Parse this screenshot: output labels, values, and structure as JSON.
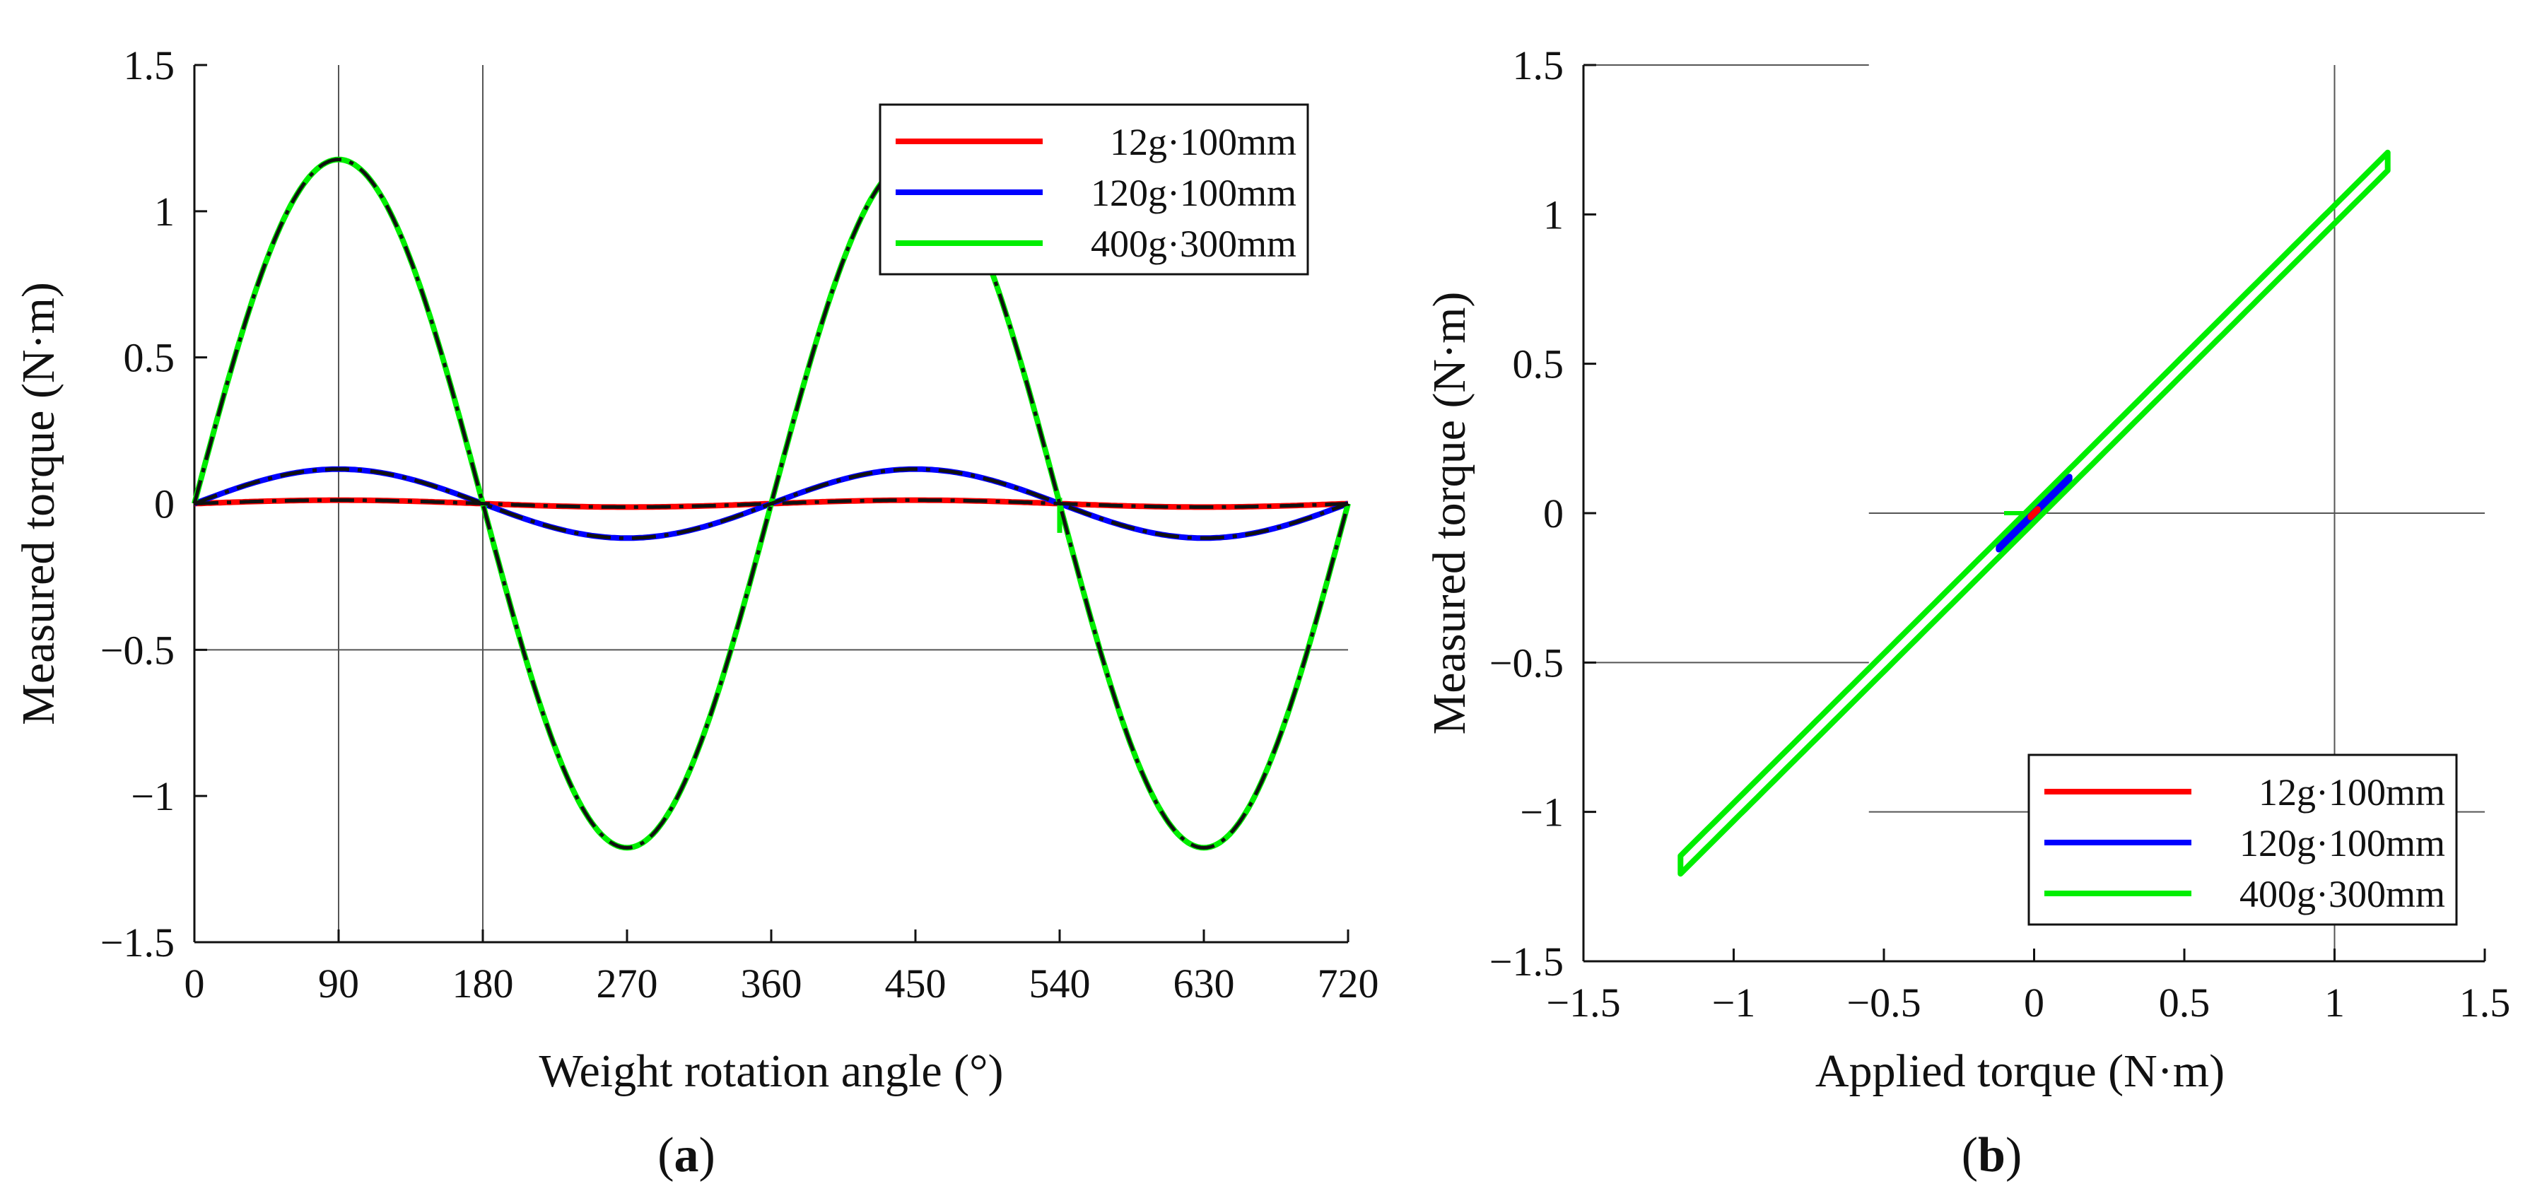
{
  "chart_data": [
    {
      "panel_label": "a",
      "type": "line",
      "xlabel": "Weight rotation angle (°)",
      "ylabel": "Measured torque (N·m)",
      "xlim": [
        0,
        720
      ],
      "ylim": [
        -1.5,
        1.5
      ],
      "xticks": [
        "0",
        "90",
        "180",
        "270",
        "360",
        "450",
        "540",
        "630",
        "720"
      ],
      "xtick_values": [
        0,
        90,
        180,
        270,
        360,
        450,
        540,
        630,
        720
      ],
      "yticks": [
        "−1.5",
        "−1",
        "−0.5",
        "0",
        "0.5",
        "1",
        "1.5"
      ],
      "ytick_values": [
        -1.5,
        -1,
        -0.5,
        0,
        0.5,
        1,
        1.5
      ],
      "gridlines": {
        "x": [
          90,
          180
        ],
        "y": [
          -0.5
        ]
      },
      "legend": {
        "position": "top-right"
      },
      "series": [
        {
          "name": "12g·100mm",
          "color": "#ff0000",
          "amplitude": 0.0118,
          "function": "sine",
          "period_deg": 360
        },
        {
          "name": "120g·100mm",
          "color": "#0000ff",
          "amplitude": 0.118,
          "function": "sine",
          "period_deg": 360
        },
        {
          "name": "400g·300mm",
          "color": "#00ee00",
          "amplitude": 1.177,
          "function": "sine",
          "period_deg": 360,
          "glitch_at_deg": 540,
          "glitch_value": -0.1
        }
      ],
      "reference_line": {
        "name": "applied",
        "color": "#111111",
        "style": "dash-dot",
        "overlays": "all series"
      }
    },
    {
      "panel_label": "b",
      "type": "line",
      "xlabel": "Applied torque (N·m)",
      "ylabel": "Measured torque (N·m)",
      "xlim": [
        -1.5,
        1.5
      ],
      "ylim": [
        -1.5,
        1.5
      ],
      "xticks": [
        "−1.5",
        "−1",
        "−0.5",
        "0",
        "0.5",
        "1",
        "1.5"
      ],
      "xtick_values": [
        -1.5,
        -1,
        -0.5,
        0,
        0.5,
        1,
        1.5
      ],
      "yticks": [
        "−1.5",
        "−1",
        "−0.5",
        "0",
        "0.5",
        "1",
        "1.5"
      ],
      "ytick_values": [
        -1.5,
        -1,
        -0.5,
        0,
        0.5,
        1,
        1.5
      ],
      "gridlines": {
        "x": [
          1
        ],
        "y_segments": [
          {
            "y": 1.5,
            "x_from": -1.5,
            "x_to": -0.55
          },
          {
            "y": 0,
            "x_from": -0.55,
            "x_to": 1.5
          },
          {
            "y": -0.5,
            "x_from": -1.5,
            "x_to": -0.55
          },
          {
            "y": -1,
            "x_from": -0.55,
            "x_to": 1.5
          }
        ]
      },
      "legend": {
        "position": "bottom-right"
      },
      "series": [
        {
          "name": "12g·100mm",
          "color": "#ff0000",
          "x_range": [
            -0.012,
            0.012
          ],
          "loop_half_width": 0.002
        },
        {
          "name": "120g·100mm",
          "color": "#0000ff",
          "x_range": [
            -0.118,
            0.118
          ],
          "loop_half_width": 0.004
        },
        {
          "name": "400g·300mm",
          "color": "#00ee00",
          "x_range": [
            -1.177,
            1.177
          ],
          "loop_half_width": 0.03,
          "stub": {
            "x": [
              -0.1,
              0
            ],
            "y": [
              0,
              0
            ]
          }
        }
      ]
    }
  ]
}
